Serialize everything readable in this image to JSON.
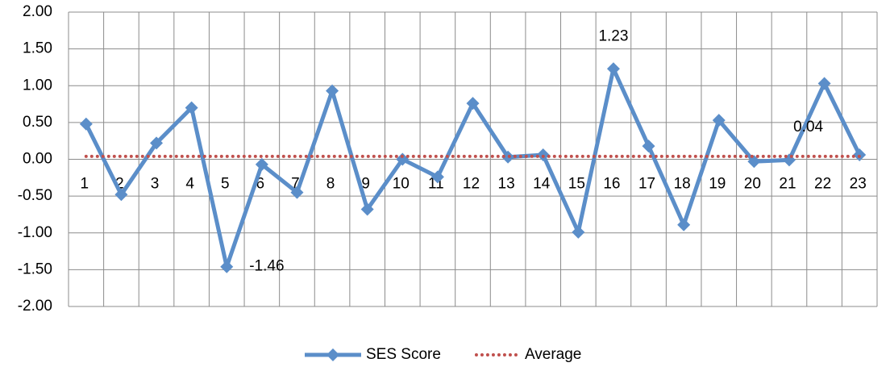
{
  "chart_data": {
    "type": "line",
    "categories": [
      "1",
      "2",
      "3",
      "4",
      "5",
      "6",
      "7",
      "8",
      "9",
      "10",
      "11",
      "12",
      "13",
      "14",
      "15",
      "16",
      "17",
      "18",
      "19",
      "20",
      "21",
      "22",
      "23"
    ],
    "series": [
      {
        "name": "SES Score",
        "color": "#5b8ec9",
        "values": [
          0.48,
          -0.48,
          0.22,
          0.7,
          -1.46,
          -0.07,
          -0.45,
          0.93,
          -0.68,
          0.0,
          -0.24,
          0.76,
          0.03,
          0.06,
          -0.99,
          1.23,
          0.18,
          -0.89,
          0.53,
          -0.03,
          -0.01,
          1.03,
          0.06
        ],
        "value_labels": [
          null,
          null,
          null,
          null,
          "-1.46",
          null,
          null,
          null,
          null,
          null,
          null,
          null,
          null,
          null,
          null,
          "1.23",
          null,
          null,
          null,
          null,
          null,
          null,
          null
        ]
      },
      {
        "name": "Average",
        "color": "#c0504d",
        "dotted": true,
        "values": [
          0.04,
          0.04,
          0.04,
          0.04,
          0.04,
          0.04,
          0.04,
          0.04,
          0.04,
          0.04,
          0.04,
          0.04,
          0.04,
          0.04,
          0.04,
          0.04,
          0.04,
          0.04,
          0.04,
          0.04,
          0.04,
          0.04,
          0.04
        ],
        "value_labels": [
          null,
          null,
          null,
          null,
          null,
          null,
          null,
          null,
          null,
          null,
          null,
          null,
          null,
          null,
          null,
          null,
          null,
          null,
          null,
          null,
          null,
          "0.04",
          null
        ]
      }
    ],
    "ylim": [
      -2,
      2
    ],
    "yticks": [
      {
        "value": 2,
        "label": "2.00"
      },
      {
        "value": 1.5,
        "label": "1.50"
      },
      {
        "value": 1,
        "label": "1.00"
      },
      {
        "value": 0.5,
        "label": "0.50"
      },
      {
        "value": 0,
        "label": "0.00"
      },
      {
        "value": -0.5,
        "label": "-0.50"
      },
      {
        "value": -1,
        "label": "-1.00"
      },
      {
        "value": -1.5,
        "label": "-1.50"
      },
      {
        "value": -2,
        "label": "-2.00"
      }
    ],
    "grid": true,
    "legend": "bottom"
  }
}
